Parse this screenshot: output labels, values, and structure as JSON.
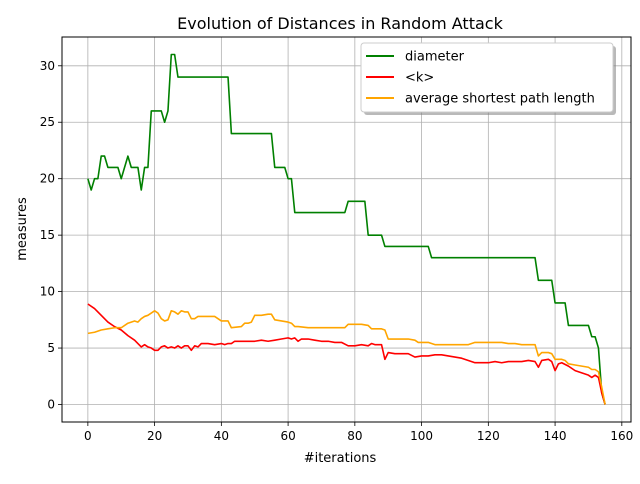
{
  "chart_data": {
    "type": "line",
    "title": "Evolution of Distances in Random Attack",
    "xlabel": "#iterations",
    "ylabel": "measures",
    "xlim": [
      -7.75,
      162.75
    ],
    "ylim": [
      -1.55,
      32.55
    ],
    "xticks": [
      0,
      20,
      40,
      60,
      80,
      100,
      120,
      140,
      160
    ],
    "yticks": [
      0,
      5,
      10,
      15,
      20,
      25,
      30
    ],
    "grid": true,
    "legend_position": "top-right",
    "series": [
      {
        "name": "diameter",
        "color": "#008000",
        "x": [
          0,
          1,
          2,
          3,
          4,
          5,
          6,
          7,
          8,
          9,
          10,
          11,
          12,
          13,
          14,
          15,
          16,
          17,
          18,
          19,
          20,
          21,
          22,
          23,
          24,
          25,
          26,
          27,
          28,
          29,
          30,
          31,
          32,
          33,
          34,
          35,
          36,
          37,
          38,
          39,
          40,
          41,
          42,
          43,
          44,
          45,
          46,
          47,
          48,
          49,
          50,
          51,
          52,
          53,
          54,
          55,
          56,
          57,
          58,
          59,
          60,
          61,
          62,
          63,
          64,
          65,
          66,
          67,
          68,
          69,
          70,
          71,
          72,
          73,
          74,
          75,
          76,
          77,
          78,
          79,
          80,
          81,
          82,
          83,
          84,
          85,
          86,
          87,
          88,
          89,
          90,
          91,
          92,
          93,
          94,
          95,
          96,
          97,
          98,
          99,
          100,
          101,
          102,
          103,
          104,
          105,
          106,
          107,
          108,
          109,
          110,
          111,
          112,
          113,
          114,
          115,
          116,
          117,
          118,
          119,
          120,
          121,
          122,
          123,
          124,
          125,
          126,
          127,
          128,
          129,
          130,
          131,
          132,
          133,
          134,
          135,
          136,
          137,
          138,
          139,
          140,
          141,
          142,
          143,
          144,
          145,
          146,
          147,
          148,
          149,
          150,
          151,
          152,
          153,
          154,
          155
        ],
        "values": [
          20,
          19,
          20,
          20,
          22,
          22,
          21,
          21,
          21,
          21,
          20,
          21,
          22,
          21,
          21,
          21,
          19,
          21,
          21,
          26,
          26,
          26,
          26,
          25,
          26,
          31,
          31,
          29,
          29,
          29,
          29,
          29,
          29,
          29,
          29,
          29,
          29,
          29,
          29,
          29,
          29,
          29,
          29,
          24,
          24,
          24,
          24,
          24,
          24,
          24,
          24,
          24,
          24,
          24,
          24,
          24,
          21,
          21,
          21,
          21,
          20,
          20,
          17,
          17,
          17,
          17,
          17,
          17,
          17,
          17,
          17,
          17,
          17,
          17,
          17,
          17,
          17,
          17,
          18,
          18,
          18,
          18,
          18,
          18,
          15,
          15,
          15,
          15,
          15,
          14,
          14,
          14,
          14,
          14,
          14,
          14,
          14,
          14,
          14,
          14,
          14,
          14,
          14,
          13,
          13,
          13,
          13,
          13,
          13,
          13,
          13,
          13,
          13,
          13,
          13,
          13,
          13,
          13,
          13,
          13,
          13,
          13,
          13,
          13,
          13,
          13,
          13,
          13,
          13,
          13,
          13,
          13,
          13,
          13,
          13,
          11,
          11,
          11,
          11,
          11,
          9,
          9,
          9,
          9,
          7,
          7,
          7,
          7,
          7,
          7,
          7,
          6,
          6,
          5,
          1,
          0
        ]
      },
      {
        "name": "<k>",
        "color": "#ff0000",
        "x": [
          0,
          2,
          4,
          6,
          8,
          10,
          12,
          14,
          16,
          17,
          18,
          19,
          20,
          21,
          22,
          23,
          24,
          25,
          26,
          27,
          28,
          29,
          30,
          31,
          32,
          33,
          34,
          36,
          38,
          40,
          41,
          42,
          43,
          44,
          46,
          48,
          50,
          52,
          54,
          56,
          58,
          60,
          61,
          62,
          63,
          64,
          66,
          68,
          70,
          72,
          74,
          76,
          78,
          80,
          82,
          84,
          85,
          86,
          88,
          89,
          90,
          92,
          94,
          96,
          98,
          100,
          102,
          104,
          106,
          108,
          110,
          112,
          114,
          116,
          118,
          120,
          122,
          124,
          126,
          128,
          130,
          132,
          134,
          135,
          136,
          138,
          139,
          140,
          141,
          142,
          144,
          146,
          148,
          150,
          151,
          152,
          153,
          154,
          155
        ],
        "values": [
          8.9,
          8.5,
          7.9,
          7.3,
          6.9,
          6.6,
          6.1,
          5.7,
          5.1,
          5.3,
          5.1,
          5.0,
          4.8,
          4.8,
          5.1,
          5.2,
          5.0,
          5.1,
          5.0,
          5.2,
          5.0,
          5.2,
          5.2,
          4.8,
          5.2,
          5.1,
          5.4,
          5.4,
          5.3,
          5.4,
          5.3,
          5.4,
          5.4,
          5.6,
          5.6,
          5.6,
          5.6,
          5.7,
          5.6,
          5.7,
          5.8,
          5.9,
          5.8,
          5.9,
          5.6,
          5.8,
          5.8,
          5.7,
          5.6,
          5.6,
          5.5,
          5.5,
          5.2,
          5.2,
          5.3,
          5.2,
          5.4,
          5.3,
          5.3,
          4.0,
          4.6,
          4.5,
          4.5,
          4.5,
          4.2,
          4.3,
          4.3,
          4.4,
          4.4,
          4.3,
          4.2,
          4.1,
          3.9,
          3.7,
          3.7,
          3.7,
          3.8,
          3.7,
          3.8,
          3.8,
          3.8,
          3.9,
          3.8,
          3.3,
          3.9,
          4.0,
          3.8,
          3.0,
          3.6,
          3.7,
          3.4,
          3.0,
          2.8,
          2.6,
          2.4,
          2.6,
          2.4,
          1.0,
          0.0
        ]
      },
      {
        "name": "average shortest path length",
        "color": "#ffa500",
        "x": [
          0,
          2,
          4,
          6,
          8,
          10,
          12,
          14,
          15,
          16,
          17,
          18,
          19,
          20,
          21,
          22,
          23,
          24,
          25,
          26,
          27,
          28,
          29,
          30,
          31,
          32,
          33,
          34,
          36,
          38,
          40,
          42,
          43,
          46,
          47,
          48,
          49,
          50,
          52,
          54,
          55,
          56,
          58,
          60,
          61,
          62,
          63,
          66,
          70,
          74,
          76,
          77,
          78,
          80,
          82,
          84,
          85,
          88,
          89,
          90,
          92,
          96,
          98,
          99,
          100,
          102,
          104,
          106,
          108,
          110,
          112,
          114,
          116,
          118,
          120,
          122,
          124,
          126,
          128,
          130,
          132,
          134,
          135,
          136,
          138,
          139,
          140,
          141,
          142,
          143,
          144,
          146,
          148,
          150,
          151,
          152,
          153,
          154,
          155
        ],
        "values": [
          6.3,
          6.4,
          6.6,
          6.7,
          6.8,
          6.8,
          7.2,
          7.4,
          7.3,
          7.6,
          7.8,
          7.9,
          8.1,
          8.3,
          8.1,
          7.6,
          7.4,
          7.5,
          8.3,
          8.2,
          8.0,
          8.3,
          8.2,
          8.2,
          7.6,
          7.6,
          7.8,
          7.8,
          7.8,
          7.8,
          7.4,
          7.4,
          6.8,
          6.9,
          7.2,
          7.2,
          7.3,
          7.9,
          7.9,
          8.0,
          8.0,
          7.5,
          7.4,
          7.3,
          7.2,
          6.9,
          6.9,
          6.8,
          6.8,
          6.8,
          6.8,
          6.8,
          7.1,
          7.1,
          7.1,
          7.0,
          6.7,
          6.7,
          6.6,
          5.8,
          5.8,
          5.8,
          5.7,
          5.5,
          5.5,
          5.5,
          5.3,
          5.3,
          5.3,
          5.3,
          5.3,
          5.3,
          5.5,
          5.5,
          5.5,
          5.5,
          5.5,
          5.4,
          5.4,
          5.3,
          5.3,
          5.3,
          4.3,
          4.6,
          4.6,
          4.5,
          4.0,
          4.0,
          4.0,
          3.9,
          3.6,
          3.5,
          3.4,
          3.3,
          3.1,
          3.1,
          2.9,
          1.5,
          0.0
        ]
      }
    ]
  }
}
